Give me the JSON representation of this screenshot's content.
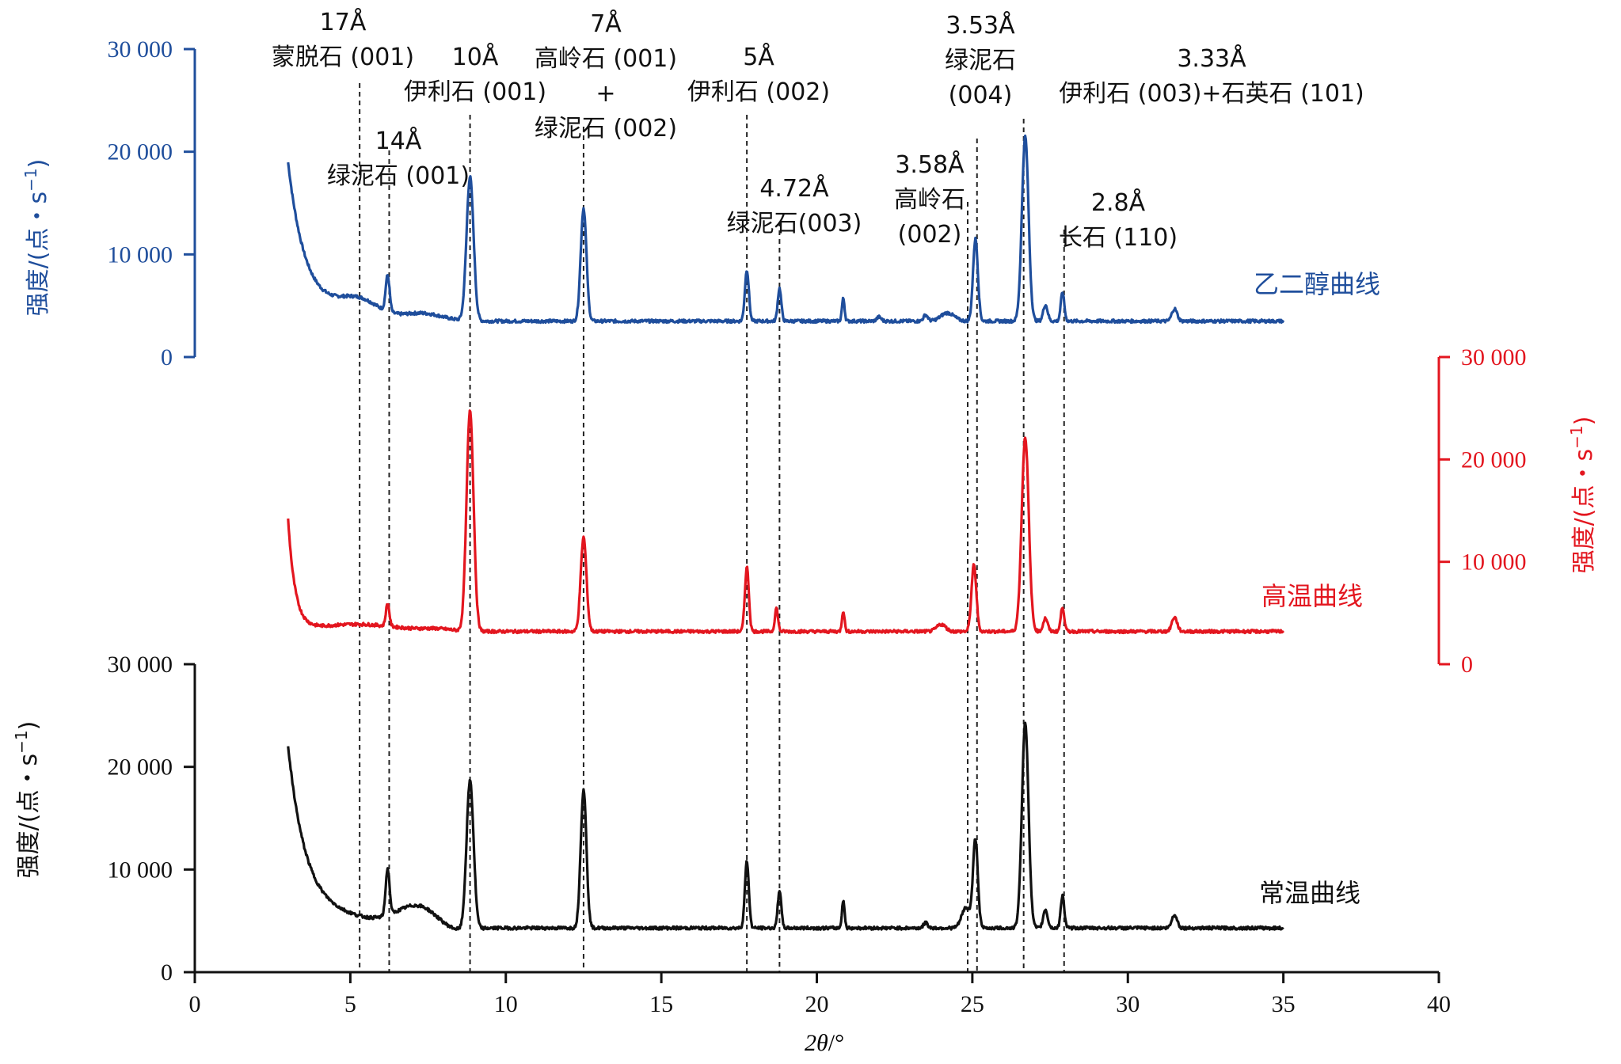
{
  "chart_data": {
    "type": "line",
    "x_range": [
      0,
      40
    ],
    "x_ticks": [
      "0",
      "5",
      "10",
      "15",
      "20",
      "25",
      "30",
      "35",
      "40"
    ],
    "xlabel_italic": "2θ",
    "xlabel_unit": "/°",
    "y_range": [
      0,
      30000
    ],
    "y_ticks": [
      "0",
      "10 000",
      "20 000",
      "30 000"
    ],
    "ylabel": "强度/(点・s",
    "ylabel_sup": "−1",
    "ylabel_close": ")",
    "grid": false,
    "colors": {
      "glycol": "#1f4e9c",
      "high_temp": "#e3161f",
      "normal": "#111111"
    },
    "series": [
      {
        "name": "乙二醇曲线",
        "key": "glycol",
        "baseline": 3500,
        "start": 18500,
        "decay": 1.6,
        "humps": [
          [
            4.1,
            5000,
            1.6
          ],
          [
            5.3,
            6800,
            0.9
          ],
          [
            7.3,
            5000,
            0.9
          ]
        ],
        "peaks": [
          [
            6.2,
            3500,
            0.09
          ],
          [
            8.85,
            14000,
            0.16
          ],
          [
            12.5,
            11000,
            0.13
          ],
          [
            17.75,
            5000,
            0.09
          ],
          [
            18.8,
            3200,
            0.08
          ],
          [
            20.85,
            2200,
            0.06
          ],
          [
            22.0,
            400,
            0.1
          ],
          [
            23.5,
            600,
            0.1
          ],
          [
            24.2,
            800,
            0.3
          ],
          [
            25.1,
            8000,
            0.11
          ],
          [
            26.7,
            18000,
            0.15
          ],
          [
            27.35,
            1600,
            0.1
          ],
          [
            27.9,
            2800,
            0.08
          ],
          [
            31.5,
            1200,
            0.12
          ]
        ]
      },
      {
        "name": "高温曲线",
        "key": "high_temp",
        "baseline": 3200,
        "start": 14000,
        "decay": 0.65,
        "humps": [
          [
            5.2,
            4600,
            1.8
          ],
          [
            7.8,
            3600,
            0.7
          ]
        ],
        "peaks": [
          [
            6.2,
            2200,
            0.08
          ],
          [
            8.85,
            21500,
            0.16
          ],
          [
            12.5,
            9200,
            0.13
          ],
          [
            17.75,
            6300,
            0.09
          ],
          [
            18.7,
            2300,
            0.07
          ],
          [
            20.85,
            2000,
            0.06
          ],
          [
            24.0,
            700,
            0.2
          ],
          [
            25.05,
            6500,
            0.11
          ],
          [
            26.7,
            19000,
            0.16
          ],
          [
            27.35,
            1300,
            0.1
          ],
          [
            27.9,
            2400,
            0.08
          ],
          [
            31.5,
            1400,
            0.12
          ]
        ]
      },
      {
        "name": "常温曲线",
        "key": "normal",
        "baseline": 4300,
        "start": 21500,
        "decay": 1.7,
        "humps": [
          [
            4.5,
            6200,
            1.8
          ],
          [
            7.2,
            8600,
            1.0
          ],
          [
            8.2,
            3000,
            0.7
          ]
        ],
        "peaks": [
          [
            6.2,
            4500,
            0.09
          ],
          [
            8.85,
            14500,
            0.16
          ],
          [
            12.5,
            13500,
            0.13
          ],
          [
            17.75,
            6500,
            0.09
          ],
          [
            18.8,
            3700,
            0.08
          ],
          [
            20.85,
            2700,
            0.06
          ],
          [
            23.5,
            500,
            0.1
          ],
          [
            24.8,
            2000,
            0.2
          ],
          [
            25.1,
            8500,
            0.11
          ],
          [
            26.7,
            20000,
            0.15
          ],
          [
            27.35,
            1800,
            0.1
          ],
          [
            27.9,
            3200,
            0.08
          ],
          [
            31.5,
            1300,
            0.12
          ]
        ]
      }
    ],
    "reference_lines": [
      5.3,
      6.25,
      8.85,
      12.5,
      17.75,
      18.8,
      24.85,
      25.15,
      26.65,
      27.95
    ],
    "annotations": [
      [
        "17Å",
        "蒙脱石 (001)"
      ],
      [
        "14Å",
        "绿泥石 (001)"
      ],
      [
        "10Å",
        "伊利石 (001)"
      ],
      [
        "7Å",
        "高岭石 (001)",
        "+",
        "绿泥石 (002)"
      ],
      [
        "5Å",
        "伊利石 (002)"
      ],
      [
        "4.72Å",
        "绿泥石(003)"
      ],
      [
        "3.58Å",
        "高岭石",
        "(002)"
      ],
      [
        "3.53Å",
        "绿泥石",
        "(004)"
      ],
      [
        "3.33Å",
        "伊利石 (003)+石英石 (101)"
      ],
      [
        "2.8Å",
        "长石 (110)"
      ]
    ]
  }
}
